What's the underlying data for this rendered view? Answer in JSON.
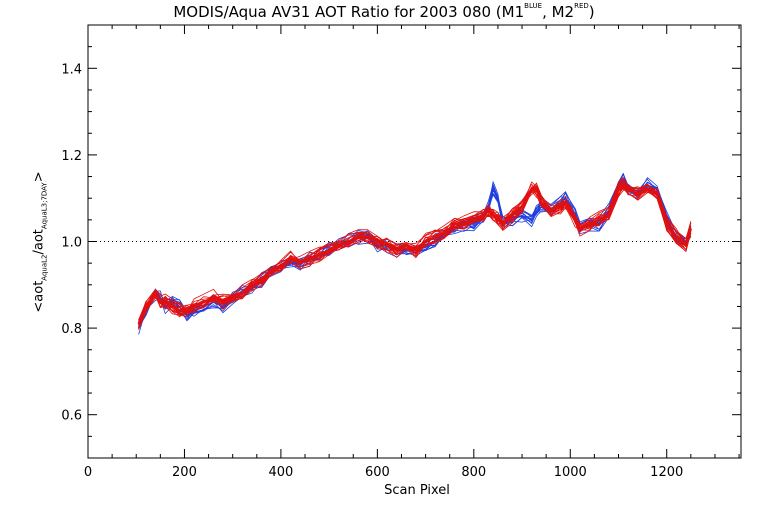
{
  "chart_data": {
    "type": "line",
    "title": {
      "prefix": "MODIS/Aqua AV31 AOT Ratio for 2003 080 (M1",
      "sup1": "BLUE",
      "middle": ", M2",
      "sup2": "RED",
      "suffix": ")"
    },
    "xlabel": "Scan Pixel",
    "ylabel": {
      "prefix": "<aot",
      "sub1": "AquaL2",
      "middle": "/aot",
      "sub2": "AquaL3;7DAY",
      "suffix": ">"
    },
    "xlim": [
      0,
      1354
    ],
    "ylim": [
      0.5,
      1.5
    ],
    "xticks": [
      0,
      200,
      400,
      600,
      800,
      1000,
      1200
    ],
    "xtick_labels": [
      "0",
      "200",
      "400",
      "600",
      "800",
      "1000",
      "1200"
    ],
    "yticks": [
      0.6,
      0.8,
      1.0,
      1.2,
      1.4
    ],
    "ytick_labels": [
      "0.6",
      "0.8",
      "1.0",
      "1.2",
      "1.4"
    ],
    "reference_line": {
      "y": 1.0,
      "style": "dotted"
    },
    "x": [
      105,
      120,
      140,
      150,
      160,
      175,
      190,
      205,
      220,
      240,
      260,
      280,
      300,
      320,
      340,
      360,
      380,
      400,
      420,
      440,
      460,
      480,
      500,
      520,
      540,
      560,
      580,
      600,
      620,
      640,
      660,
      680,
      700,
      720,
      740,
      760,
      780,
      800,
      820,
      830,
      840,
      850,
      860,
      880,
      900,
      920,
      930,
      940,
      960,
      980,
      990,
      1000,
      1010,
      1020,
      1040,
      1060,
      1080,
      1100,
      1110,
      1120,
      1140,
      1160,
      1180,
      1200,
      1220,
      1240,
      1250
    ],
    "series": [
      {
        "color": "#1f3fe0",
        "values": [
          0.8,
          0.84,
          0.88,
          0.87,
          0.85,
          0.86,
          0.85,
          0.83,
          0.84,
          0.85,
          0.86,
          0.85,
          0.87,
          0.88,
          0.89,
          0.91,
          0.93,
          0.94,
          0.95,
          0.95,
          0.96,
          0.97,
          0.98,
          0.99,
          1.0,
          1.01,
          1.01,
          0.99,
          0.99,
          0.98,
          0.98,
          0.98,
          0.99,
          1.0,
          1.02,
          1.03,
          1.04,
          1.04,
          1.06,
          1.08,
          1.12,
          1.1,
          1.04,
          1.05,
          1.06,
          1.05,
          1.07,
          1.08,
          1.07,
          1.09,
          1.1,
          1.08,
          1.06,
          1.03,
          1.04,
          1.04,
          1.07,
          1.13,
          1.14,
          1.12,
          1.11,
          1.13,
          1.12,
          1.05,
          1.01,
          1.0,
          1.02
        ]
      },
      {
        "color": "#e01010",
        "values": [
          0.81,
          0.85,
          0.88,
          0.86,
          0.86,
          0.85,
          0.84,
          0.84,
          0.85,
          0.86,
          0.87,
          0.86,
          0.87,
          0.88,
          0.9,
          0.91,
          0.93,
          0.94,
          0.96,
          0.95,
          0.96,
          0.97,
          0.98,
          0.99,
          1.0,
          1.01,
          1.01,
          1.0,
          0.99,
          0.98,
          0.99,
          0.98,
          1.0,
          1.01,
          1.02,
          1.04,
          1.04,
          1.05,
          1.06,
          1.07,
          1.06,
          1.05,
          1.04,
          1.06,
          1.08,
          1.12,
          1.12,
          1.09,
          1.07,
          1.08,
          1.09,
          1.07,
          1.05,
          1.03,
          1.04,
          1.05,
          1.06,
          1.12,
          1.13,
          1.12,
          1.11,
          1.12,
          1.11,
          1.04,
          1.01,
          0.99,
          1.03
        ]
      }
    ]
  }
}
